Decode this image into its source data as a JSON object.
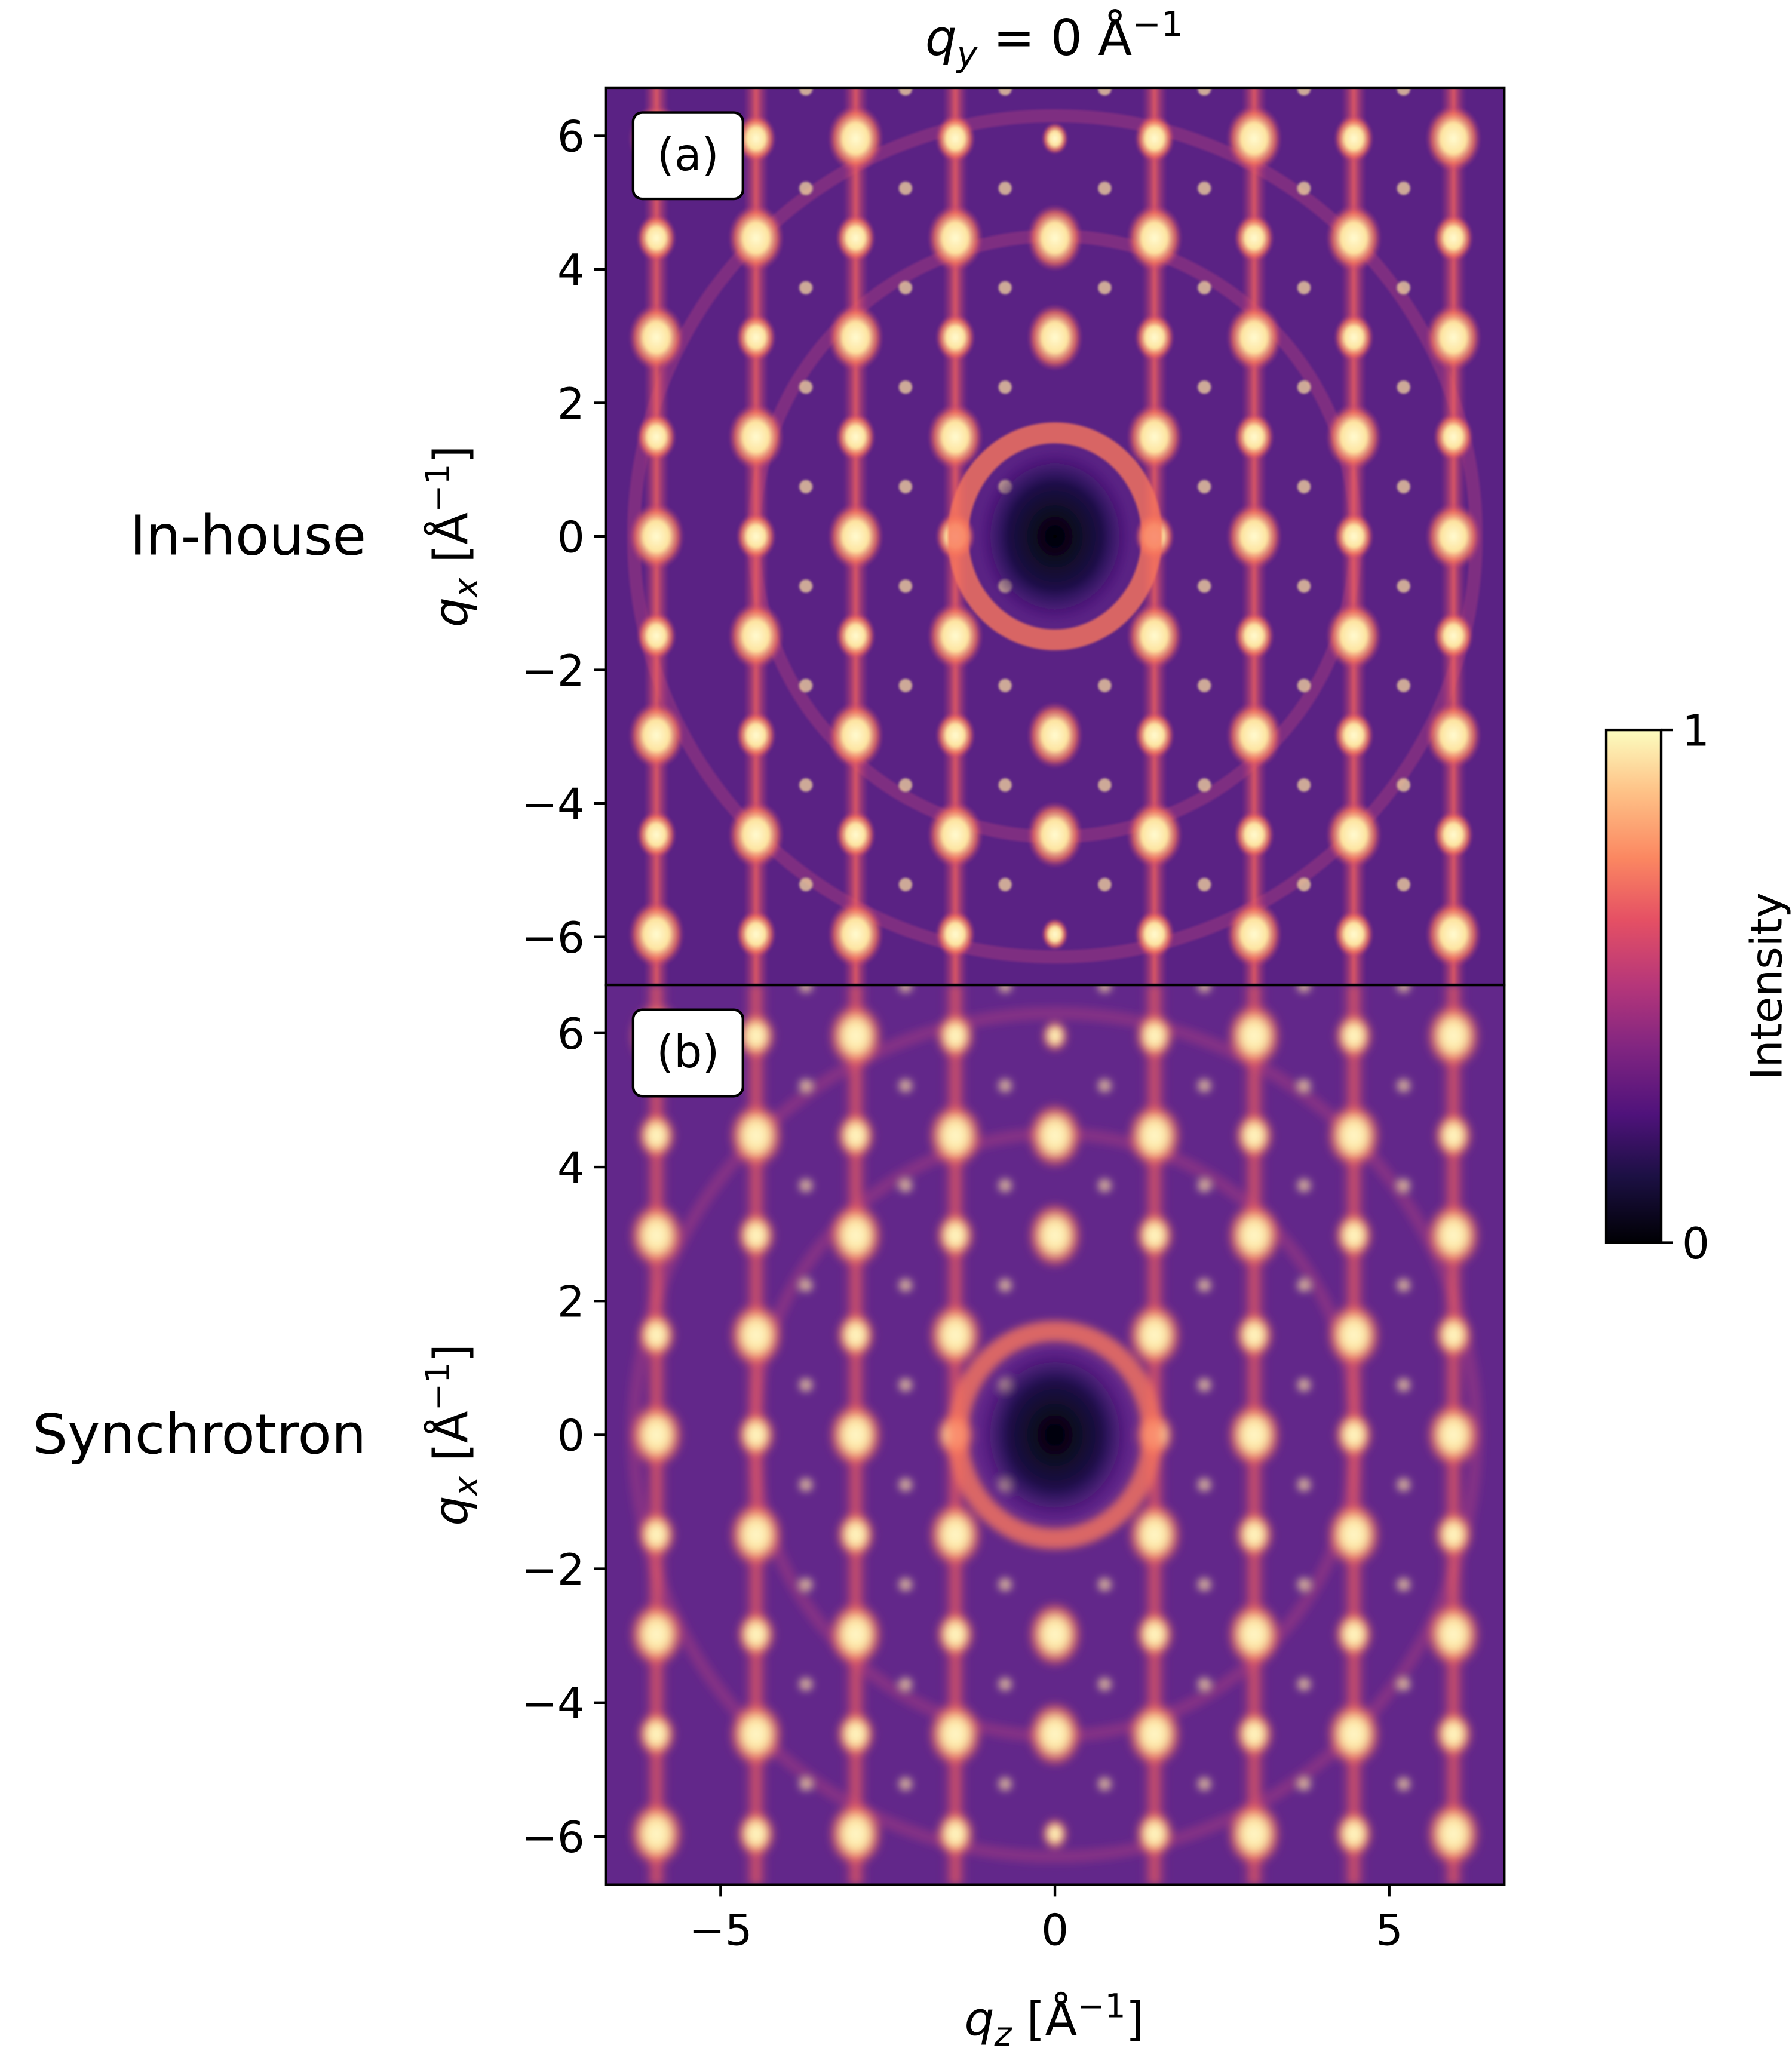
{
  "title": {
    "main": "q",
    "sub": "y",
    "rest": " = 0 Å",
    "sup": "−1"
  },
  "colorbar": {
    "label": "Intensity",
    "lim": [
      0,
      1
    ],
    "ticks": [
      0,
      1
    ],
    "colormap": "magma"
  },
  "chart_data": [
    {
      "type": "heatmap",
      "panel_label": "(a)",
      "row_label": "In-house",
      "xlim": [
        -6.72,
        6.72
      ],
      "ylim": [
        -6.72,
        6.72
      ],
      "yticks": [
        {
          "value": -6,
          "label": "−6"
        },
        {
          "value": -4,
          "label": "−4"
        },
        {
          "value": -2,
          "label": "−2"
        },
        0,
        2,
        4,
        6
      ],
      "ylabel": {
        "main": "q",
        "sub": "x",
        "rest": " [Å",
        "sup": "−1",
        "end": "]"
      },
      "sharpness": "sharp"
    },
    {
      "type": "heatmap",
      "panel_label": "(b)",
      "row_label": "Synchrotron",
      "xlim": [
        -6.72,
        6.72
      ],
      "ylim": [
        -6.72,
        6.72
      ],
      "xticks": [
        {
          "value": -5,
          "label": "−5"
        },
        0,
        5
      ],
      "yticks": [
        {
          "value": -6,
          "label": "−6"
        },
        {
          "value": -4,
          "label": "−4"
        },
        {
          "value": -2,
          "label": "−2"
        },
        0,
        2,
        4,
        6
      ],
      "xlabel": {
        "main": "q",
        "sub": "z",
        "rest": " [Å",
        "sup": "−1",
        "end": "]"
      },
      "ylabel": {
        "main": "q",
        "sub": "x",
        "rest": " [Å",
        "sup": "−1",
        "end": "]"
      },
      "sharpness": "blurred"
    }
  ]
}
